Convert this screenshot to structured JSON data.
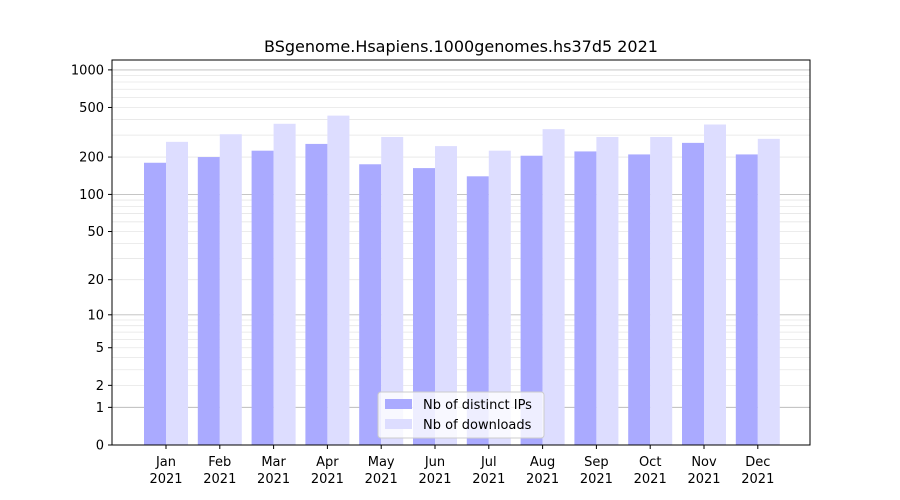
{
  "chart_data": {
    "type": "bar",
    "title": "BSgenome.Hsapiens.1000genomes.hs37d5 2021",
    "xlabel": "",
    "ylabel": "",
    "y_scale": "log(1+y)",
    "ylim": [
      0,
      1200
    ],
    "y_ticks": [
      0,
      1,
      2,
      5,
      10,
      20,
      50,
      100,
      200,
      500,
      1000
    ],
    "categories": [
      "Jan",
      "Feb",
      "Mar",
      "Apr",
      "May",
      "Jun",
      "Jul",
      "Aug",
      "Sep",
      "Oct",
      "Nov",
      "Dec"
    ],
    "category_sublabel": "2021",
    "series": [
      {
        "name": "Nb of distinct IPs",
        "color": "#aaaaff",
        "values": [
          180,
          200,
          225,
          255,
          175,
          163,
          140,
          205,
          222,
          210,
          260,
          210
        ]
      },
      {
        "name": "Nb of downloads",
        "color": "#ddddff",
        "values": [
          265,
          305,
          370,
          430,
          290,
          245,
          225,
          335,
          290,
          290,
          365,
          280
        ]
      }
    ],
    "grid": true,
    "legend_position": "bottom-center"
  }
}
